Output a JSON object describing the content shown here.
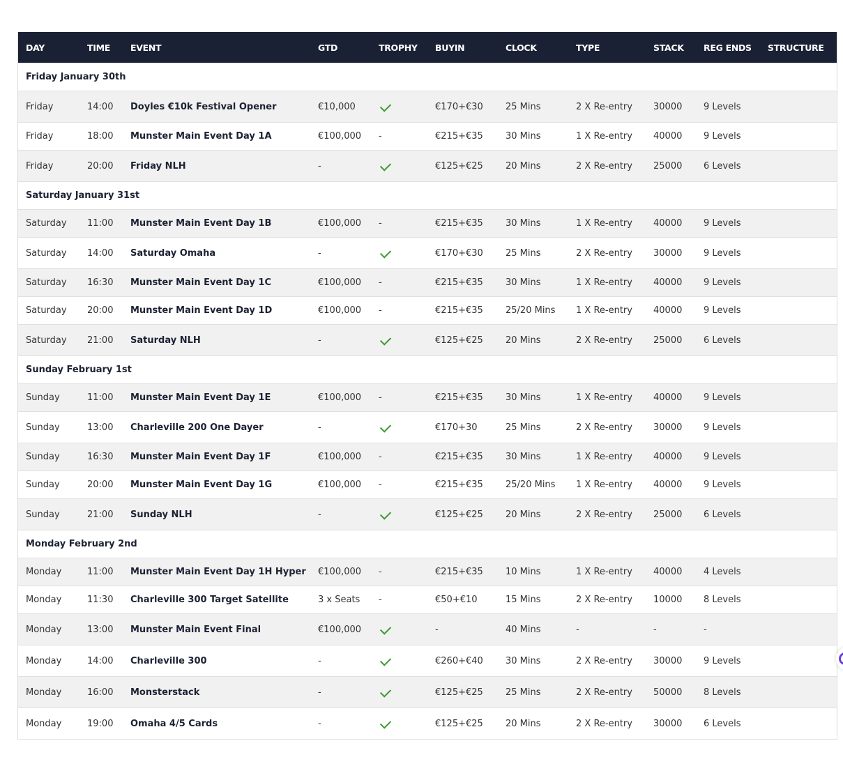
{
  "columns": [
    "DAY",
    "TIME",
    "EVENT",
    "GTD",
    "TROPHY",
    "BUYIN",
    "CLOCK",
    "TYPE",
    "STACK",
    "REG ENDS",
    "STRUCTURE"
  ],
  "colors": {
    "header_bg": "#1b2134",
    "check": "#3a9a2e",
    "stripe": "#f0f1f0"
  },
  "groups": [
    {
      "title": "Friday January 30th",
      "rows": [
        [
          "Friday",
          "14:00",
          "Doyles €10k Festival Opener",
          "€10,000",
          true,
          "€170+€30",
          "25 Mins",
          "2 X Re-entry",
          "30000",
          "9 Levels",
          ""
        ],
        [
          "Friday",
          "18:00",
          "Munster Main Event Day 1A",
          "€100,000",
          false,
          "€215+€35",
          "30 Mins",
          "1 X Re-entry",
          "40000",
          "9 Levels",
          ""
        ],
        [
          "Friday",
          "20:00",
          "Friday NLH",
          "-",
          true,
          "€125+€25",
          "20 Mins",
          "2 X Re-entry",
          "25000",
          "6 Levels",
          ""
        ]
      ]
    },
    {
      "title": "Saturday January 31st",
      "rows": [
        [
          "Saturday",
          "11:00",
          "Munster Main Event Day 1B",
          "€100,000",
          false,
          "€215+€35",
          "30 Mins",
          "1 X Re-entry",
          "40000",
          "9 Levels",
          ""
        ],
        [
          "Saturday",
          "14:00",
          "Saturday Omaha",
          "-",
          true,
          "€170+€30",
          "25 Mins",
          "2 X Re-entry",
          "30000",
          "9 Levels",
          ""
        ],
        [
          "Saturday",
          "16:30",
          "Munster Main Event Day 1C",
          "€100,000",
          false,
          "€215+€35",
          "30 Mins",
          "1 X Re-entry",
          "40000",
          "9 Levels",
          ""
        ],
        [
          "Saturday",
          "20:00",
          "Munster Main Event Day 1D",
          "€100,000",
          false,
          "€215+€35",
          "25/20 Mins",
          "1 X Re-entry",
          "40000",
          "9 Levels",
          ""
        ],
        [
          "Saturday",
          "21:00",
          "Saturday NLH",
          "-",
          true,
          "€125+€25",
          "20 Mins",
          "2 X Re-entry",
          "25000",
          "6 Levels",
          ""
        ]
      ]
    },
    {
      "title": "Sunday February 1st",
      "rows": [
        [
          "Sunday",
          "11:00",
          "Munster Main Event Day 1E",
          "€100,000",
          false,
          "€215+€35",
          "30 Mins",
          "1 X Re-entry",
          "40000",
          "9 Levels",
          ""
        ],
        [
          "Sunday",
          "13:00",
          "Charleville 200 One Dayer",
          "-",
          true,
          "€170+30",
          "25 Mins",
          "2 X Re-entry",
          "30000",
          "9 Levels",
          ""
        ],
        [
          "Sunday",
          "16:30",
          "Munster Main Event Day 1F",
          "€100,000",
          false,
          "€215+€35",
          "30 Mins",
          "1 X Re-entry",
          "40000",
          "9 Levels",
          ""
        ],
        [
          "Sunday",
          "20:00",
          "Munster Main Event Day 1G",
          "€100,000",
          false,
          "€215+€35",
          "25/20 Mins",
          "1 X Re-entry",
          "40000",
          "9 Levels",
          ""
        ],
        [
          "Sunday",
          "21:00",
          "Sunday NLH",
          "-",
          true,
          "€125+€25",
          "20 Mins",
          "2 X Re-entry",
          "25000",
          "6 Levels",
          ""
        ]
      ]
    },
    {
      "title": "Monday February 2nd",
      "rows": [
        [
          "Monday",
          "11:00",
          "Munster Main Event Day 1H Hyper",
          "€100,000",
          false,
          "€215+€35",
          "10 Mins",
          "1 X Re-entry",
          "40000",
          "4 Levels",
          ""
        ],
        [
          "Monday",
          "11:30",
          "Charleville 300 Target Satellite",
          "3 x Seats",
          false,
          "€50+€10",
          "15 Mins",
          "2 X Re-entry",
          "10000",
          "8 Levels",
          ""
        ],
        [
          "Monday",
          "13:00",
          "Munster Main Event Final",
          "€100,000",
          true,
          "-",
          "40 Mins",
          "-",
          "-",
          "-",
          ""
        ],
        [
          "Monday",
          "14:00",
          "Charleville 300",
          "-",
          true,
          "€260+€40",
          "30 Mins",
          "2 X Re-entry",
          "30000",
          "9 Levels",
          ""
        ],
        [
          "Monday",
          "16:00",
          "Monsterstack",
          "-",
          true,
          "€125+€25",
          "25 Mins",
          "2 X Re-entry",
          "50000",
          "8 Levels",
          ""
        ],
        [
          "Monday",
          "19:00",
          "Omaha 4/5 Cards",
          "-",
          true,
          "€125+€25",
          "20 Mins",
          "2 X Re-entry",
          "30000",
          "6 Levels",
          ""
        ]
      ]
    }
  ],
  "no_trophy": "-"
}
